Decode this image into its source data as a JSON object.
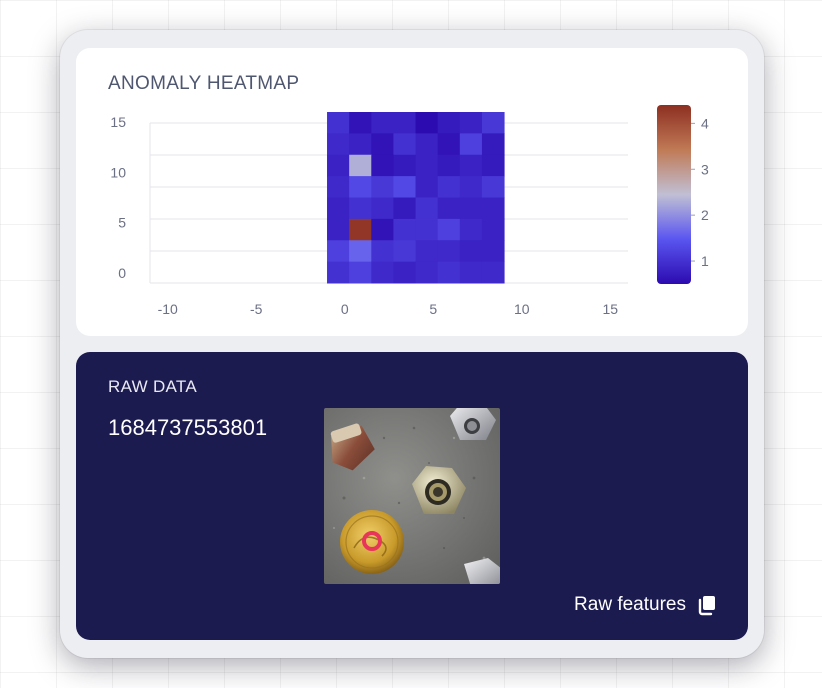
{
  "heatmap_card": {
    "title": "ANOMALY HEATMAP"
  },
  "chart_data": {
    "type": "heatmap",
    "title": "",
    "xlabel": "",
    "ylabel": "",
    "x_ticks": [
      -10,
      -5,
      0,
      5,
      10,
      15
    ],
    "y_ticks": [
      0,
      5,
      10,
      15
    ],
    "x_range": [
      -11,
      16
    ],
    "y_range": [
      -1,
      16
    ],
    "grid": true,
    "cells_extent": {
      "x": [
        -1,
        9
      ],
      "y": [
        -1,
        16
      ]
    },
    "rows": 8,
    "cols": 8,
    "values_top_to_bottom": [
      [
        1.0,
        0.6,
        0.8,
        0.8,
        0.5,
        0.7,
        0.8,
        1.1
      ],
      [
        0.9,
        0.8,
        0.6,
        1.0,
        0.8,
        0.6,
        1.2,
        0.7
      ],
      [
        0.8,
        2.3,
        0.6,
        0.7,
        0.8,
        0.7,
        0.8,
        0.7
      ],
      [
        0.9,
        1.3,
        1.1,
        1.3,
        0.8,
        1.0,
        0.9,
        1.1
      ],
      [
        0.8,
        1.0,
        0.9,
        0.7,
        1.0,
        0.8,
        0.8,
        0.8
      ],
      [
        0.8,
        4.3,
        0.6,
        1.0,
        1.0,
        1.2,
        0.9,
        0.8
      ],
      [
        1.2,
        1.6,
        1.0,
        1.1,
        0.9,
        0.9,
        0.8,
        0.8
      ],
      [
        1.0,
        1.2,
        0.9,
        0.8,
        0.9,
        1.0,
        0.9,
        0.9
      ]
    ],
    "colorbar": {
      "min": 0.5,
      "max": 4.4,
      "ticks": [
        1,
        2,
        3,
        4
      ],
      "colors": [
        "#2c0bb0",
        "#5a55f0",
        "#c0bfd4",
        "#c07a55",
        "#8d2f22"
      ]
    }
  },
  "raw_card": {
    "title": "RAW DATA",
    "timestamp": "1684737553801",
    "link_label": "Raw features",
    "link_icon": "copy-icon"
  },
  "colors": {
    "frame_bg": "#edeef2",
    "card_bg": "#ffffff",
    "raw_bg": "#1c1b50",
    "title_text": "#4f5770",
    "marker": "#e8365a"
  }
}
